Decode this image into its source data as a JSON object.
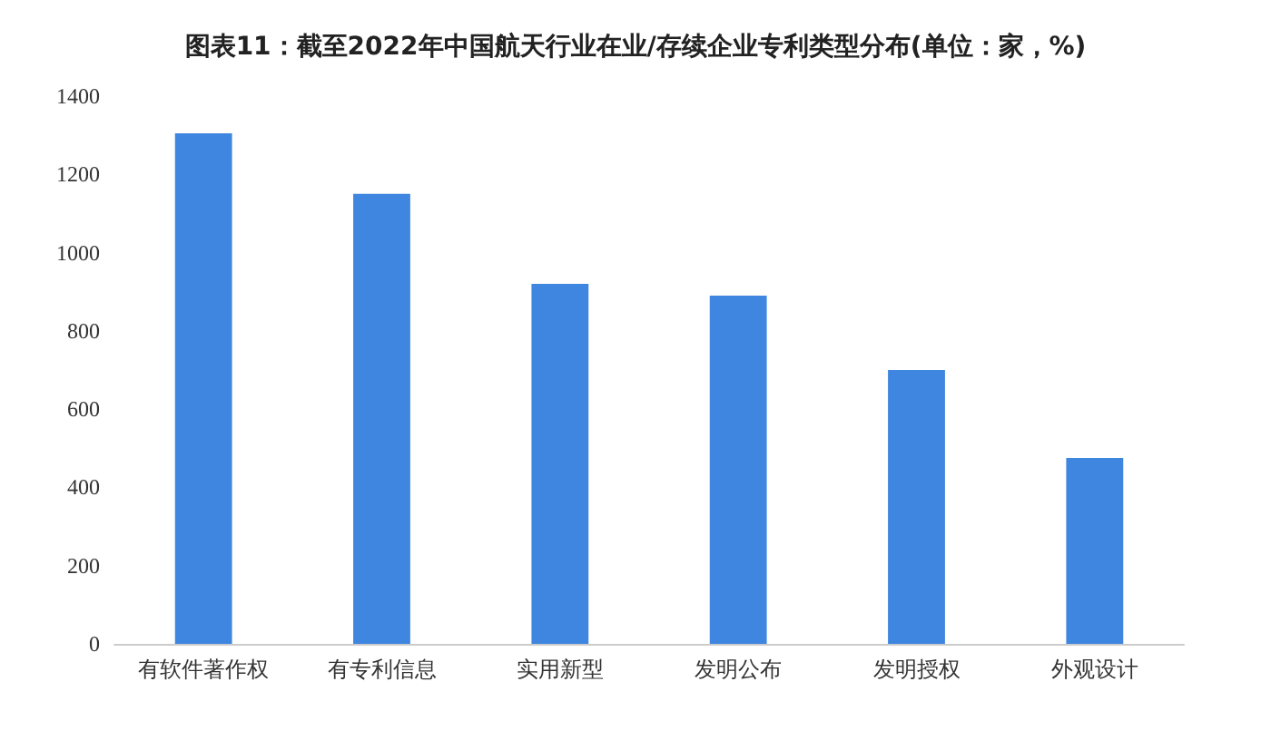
{
  "chart_data": {
    "type": "bar",
    "title": "图表11：截至2022年中国航天行业在业/存续企业专利类型分布(单位：家，%)",
    "categories": [
      "有软件著作权",
      "有专利信息",
      "实用新型",
      "发明公布",
      "发明授权",
      "外观设计"
    ],
    "values": [
      1305,
      1150,
      920,
      890,
      700,
      475
    ],
    "color": "#3f86e0",
    "ylim": [
      0,
      1400
    ],
    "yticks": [
      0,
      200,
      400,
      600,
      800,
      1000,
      1200,
      1400
    ],
    "grid": false
  }
}
